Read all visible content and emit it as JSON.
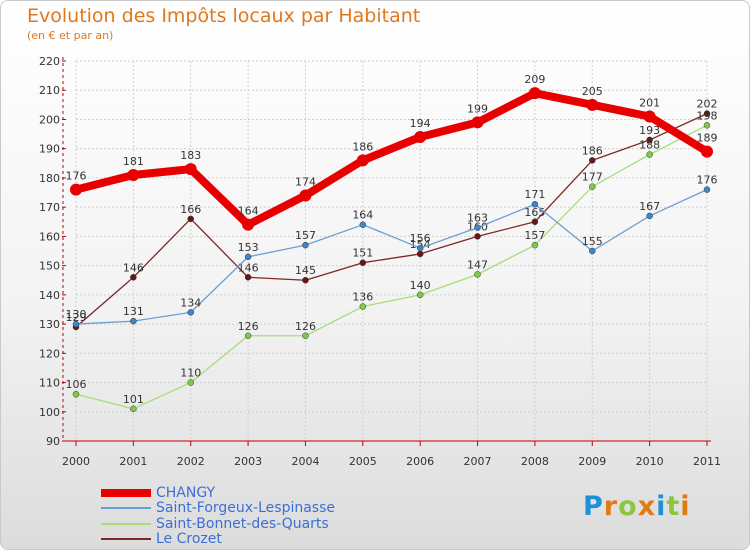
{
  "header": {
    "title": "Evolution des Impôts locaux par Habitant",
    "subtitle": "(en € et par an)"
  },
  "brand": {
    "letters": [
      "P",
      "r",
      "o",
      "x",
      "i",
      "t",
      "i"
    ],
    "colors": [
      "#1e90d8",
      "#e07a12",
      "#8cc63f",
      "#e07a12",
      "#1e90d8",
      "#8cc63f",
      "#e07a12"
    ]
  },
  "chart_data": {
    "type": "line",
    "title": "Evolution des Impôts locaux par Habitant",
    "subtitle": "(en € et par an)",
    "xlabel": "",
    "ylabel": "",
    "categories": [
      "2000",
      "2001",
      "2002",
      "2003",
      "2004",
      "2005",
      "2006",
      "2007",
      "2008",
      "2009",
      "2010",
      "2011"
    ],
    "ylim": [
      90,
      220
    ],
    "yticks": [
      "90",
      "100",
      "110",
      "120",
      "130",
      "140",
      "150",
      "160",
      "170",
      "180",
      "190",
      "200",
      "210",
      "220"
    ],
    "grid": true,
    "legend_position": "bottom-left",
    "series": [
      {
        "name": "CHANGY",
        "color": "#e80000",
        "dot": "#e80000",
        "line_style": "thick",
        "values": [
          176,
          181,
          183,
          164,
          174,
          186,
          194,
          199,
          209,
          205,
          201,
          189
        ]
      },
      {
        "name": "Saint-Forgeux-Lespinasse",
        "color": "#6a9fd4",
        "dot": "#3f86c9",
        "line_style": "thin",
        "values": [
          130,
          131,
          134,
          153,
          157,
          164,
          156,
          163,
          171,
          155,
          167,
          176
        ]
      },
      {
        "name": "Saint-Bonnet-des-Quarts",
        "color": "#a6dd7a",
        "dot": "#7dcc45",
        "line_style": "thin",
        "values": [
          106,
          101,
          110,
          126,
          126,
          136,
          140,
          147,
          157,
          177,
          188,
          198
        ]
      },
      {
        "name": "Le Crozet",
        "color": "#7a2828",
        "dot": "#6b1616",
        "line_style": "thin",
        "values": [
          129,
          146,
          166,
          146,
          145,
          151,
          154,
          160,
          165,
          186,
          193,
          202
        ]
      }
    ]
  }
}
